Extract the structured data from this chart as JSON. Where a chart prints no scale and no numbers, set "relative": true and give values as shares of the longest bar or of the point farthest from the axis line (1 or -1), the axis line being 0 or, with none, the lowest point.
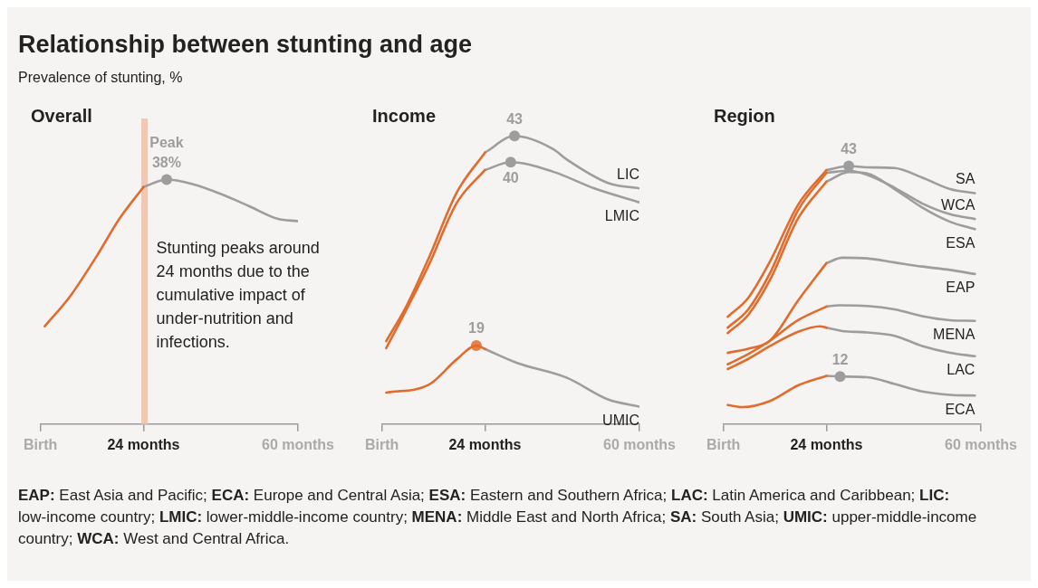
{
  "chart_data": [
    {
      "type": "other",
      "title": "Relationship between stunting and age",
      "subtitle": "Prevalence of stunting, %"
    },
    {
      "type": "line",
      "title": "Overall",
      "relative": true,
      "xlim": [
        0,
        60
      ],
      "xticks": [
        {
          "value": 0,
          "label": "Birth"
        },
        {
          "value": 24,
          "label": "24 months"
        },
        {
          "value": 60,
          "label": "60 months"
        }
      ],
      "tick_labels": "x",
      "bands": [
        {
          "axis": "x",
          "from": 23.5,
          "to": 25,
          "color": "#f0c9b6"
        }
      ],
      "series": [
        {
          "color": "#e06c2e",
          "x": [
            1,
            6.8,
            13.2,
            18.4,
            24
          ],
          "values": [
            0.4,
            0.52,
            0.69,
            0.84,
            0.97
          ]
        },
        {
          "color": "#9d9d9d",
          "x": [
            24,
            29.4,
            35.8,
            42.2,
            48.8,
            55.2,
            60
          ],
          "values": [
            0.97,
            1,
            0.98,
            0.94,
            0.89,
            0.84,
            0.83
          ]
        },
        {
          "type": "scatter",
          "x": [
            29.4
          ],
          "values": [
            1
          ],
          "colors": [
            "#9d9d9d"
          ]
        }
      ],
      "annotations": [
        {
          "text": "38%",
          "x": 29.4,
          "y": 1
        },
        {
          "text": "Peak",
          "x": 29.4,
          "y": 1
        },
        "Stunting peaks around 24 months due to the cumulative impact of under-nutrition and infections."
      ]
    },
    {
      "type": "line",
      "title": "Income",
      "xlim": [
        0,
        60
      ],
      "xticks": [
        {
          "value": 0,
          "label": "Birth"
        },
        {
          "value": 24,
          "label": "24 months"
        },
        {
          "value": 60,
          "label": "60 months"
        }
      ],
      "tick_labels": "x",
      "series": [
        {
          "color": "#e06c2e",
          "x": [
            1,
            5.8,
            10.9,
            17.4,
            24
          ],
          "values": [
            19.5,
            23.6,
            29,
            36.5,
            41.1
          ]
        },
        {
          "name": "LIC",
          "color": "#9d9d9d",
          "x": [
            24,
            30.9,
            39.9,
            43.1,
            52.8,
            60
          ],
          "values": [
            41.1,
            43,
            41.5,
            40.3,
            37.6,
            37
          ]
        },
        {
          "color": "#e06c2e",
          "x": [
            1,
            5.8,
            10.9,
            17.4,
            24
          ],
          "values": [
            18.7,
            23.2,
            28.2,
            35.3,
            39.1
          ]
        },
        {
          "name": "LMIC",
          "color": "#9d9d9d",
          "x": [
            24,
            30,
            39.9,
            49.5,
            60
          ],
          "values": [
            39.1,
            40,
            38.9,
            37,
            35.4
          ]
        },
        {
          "color": "#e06c2e",
          "x": [
            1,
            10.9,
            17.4,
            22,
            24
          ],
          "values": [
            13.6,
            14.5,
            17.4,
            19,
            18.6
          ]
        },
        {
          "name": "UMIC",
          "color": "#9d9d9d",
          "x": [
            24,
            31.5,
            43.1,
            52.8,
            60
          ],
          "values": [
            18.6,
            17,
            15.3,
            12.8,
            12
          ]
        },
        {
          "type": "scatter",
          "x": [
            30.9,
            30,
            22
          ],
          "values": [
            43,
            40,
            19
          ],
          "colors": [
            "#9d9d9d",
            "#9d9d9d",
            "#e8804a"
          ],
          "value_labels": [
            "43",
            "40",
            "19"
          ]
        }
      ]
    },
    {
      "type": "line",
      "title": "Region",
      "xlim": [
        0,
        60
      ],
      "xticks": [
        {
          "value": 0,
          "label": "Birth"
        },
        {
          "value": 24,
          "label": "24 months"
        },
        {
          "value": 60,
          "label": "60 months"
        }
      ],
      "tick_labels": "x",
      "series": [
        {
          "color": "#e06c2e",
          "x": [
            1,
            5.8,
            10.9,
            17.4,
            24
          ],
          "values": [
            20.8,
            23.6,
            29,
            37.3,
            42.4
          ]
        },
        {
          "name": "SA",
          "color": "#9d9d9d",
          "x": [
            24,
            29.2,
            33.5,
            39.9,
            46.3,
            52.8,
            58.6
          ],
          "values": [
            42.4,
            43,
            42.8,
            42.7,
            41.3,
            39.6,
            39
          ]
        },
        {
          "color": "#e06c2e",
          "x": [
            1,
            5.8,
            10.9,
            17.4,
            24
          ],
          "values": [
            19.2,
            21.9,
            27.3,
            36.5,
            42
          ]
        },
        {
          "name": "WCA",
          "color": "#9d9d9d",
          "x": [
            24,
            29.2,
            33.5,
            39.9,
            46.3,
            52.8,
            58.6
          ],
          "values": [
            42,
            42.3,
            41.7,
            39.8,
            37.5,
            35.9,
            35.2
          ]
        },
        {
          "color": "#e06c2e",
          "x": [
            1,
            5.8,
            10.9,
            17.4,
            24
          ],
          "values": [
            18.4,
            21.1,
            26.3,
            35.3,
            40.7
          ]
        },
        {
          "name": "ESA",
          "color": "#9d9d9d",
          "x": [
            24,
            29.2,
            33.5,
            39.9,
            46.3,
            52.8,
            58.6
          ],
          "values": [
            40.7,
            42.1,
            41.9,
            39.6,
            36.9,
            34.8,
            33.7
          ]
        },
        {
          "color": "#e06c2e",
          "x": [
            1,
            5.8,
            10.9,
            17.4,
            24
          ],
          "values": [
            15.5,
            16.1,
            17.3,
            23.2,
            28.7
          ]
        },
        {
          "name": "EAP",
          "color": "#9d9d9d",
          "x": [
            24,
            27.7,
            33.5,
            39.9,
            46.3,
            52.8,
            58.6
          ],
          "values": [
            28.7,
            29.5,
            29.4,
            28.8,
            28.2,
            27.7,
            27.1
          ]
        },
        {
          "color": "#e06c2e",
          "x": [
            1,
            5.8,
            10.9,
            17.4,
            24
          ],
          "values": [
            13.8,
            15.3,
            17.3,
            20.3,
            22.3
          ]
        },
        {
          "name": "MENA",
          "color": "#9d9d9d",
          "x": [
            24,
            27,
            33.5,
            39.9,
            46.3,
            52.8,
            58.6
          ],
          "values": [
            22.3,
            22.5,
            22.4,
            21.9,
            20.9,
            20.3,
            20.2
          ]
        },
        {
          "color": "#e06c2e",
          "x": [
            1,
            5.8,
            10.9,
            17.4,
            22.5,
            24
          ],
          "values": [
            13.1,
            14.6,
            16.5,
            18.6,
            19.4,
            19.2
          ]
        },
        {
          "name": "LAC",
          "color": "#9d9d9d",
          "x": [
            24,
            27.7,
            33.5,
            39.9,
            46.3,
            52.8,
            58.6
          ],
          "values": [
            19.2,
            18.7,
            18.5,
            18,
            16.5,
            15.5,
            15
          ]
        },
        {
          "color": "#e06c2e",
          "x": [
            1,
            4.5,
            10.9,
            17.4,
            24
          ],
          "values": [
            7.8,
            7.5,
            8.4,
            10.7,
            12.1
          ]
        },
        {
          "name": "ECA",
          "color": "#9d9d9d",
          "x": [
            24,
            27.2,
            33.5,
            39.9,
            46.3,
            52.8,
            58.6
          ],
          "values": [
            12.1,
            12,
            11.9,
            10.9,
            9.8,
            9.3,
            9.2
          ]
        },
        {
          "type": "scatter",
          "x": [
            29.2,
            27.2
          ],
          "values": [
            43,
            12
          ],
          "colors": [
            "#9d9d9d",
            "#9d9d9d"
          ],
          "value_labels": [
            "43",
            "12"
          ]
        }
      ]
    },
    {
      "type": "other",
      "annotations": [
        "EAP: East Asia and Pacific; ECA: Europe and Central Asia; ESA: Eastern and Southern Africa; LAC: Latin America and Caribbean; LIC: low-income country; LMIC: lower-middle-income country; MENA: Middle East and North Africa; SA: South Asia; UMIC: upper-middle-income country; WCA: West and Central Africa."
      ]
    }
  ]
}
